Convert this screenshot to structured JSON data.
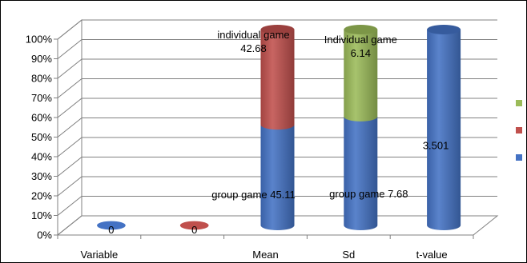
{
  "chart_data": {
    "type": "bar",
    "stacked": "percent",
    "three_d": true,
    "categories": [
      "Variable",
      "",
      "Mean",
      "Sd",
      "t-value"
    ],
    "y_ticks": [
      "0%",
      "10%",
      "20%",
      "30%",
      "40%",
      "50%",
      "60%",
      "70%",
      "80%",
      "90%",
      "100%"
    ],
    "ylim": [
      0,
      100
    ],
    "grid": true,
    "legend_position": "right",
    "series": [
      {
        "color": "#4472C4",
        "values": [
          0,
          null,
          45.11,
          7.68,
          3.501
        ]
      },
      {
        "color": "#C0504D",
        "values": [
          null,
          0,
          42.68,
          null,
          null
        ]
      },
      {
        "color": "#9BBB59",
        "values": [
          null,
          null,
          null,
          6.14,
          null
        ]
      }
    ],
    "data_labels": [
      {
        "series": 0,
        "category": 0,
        "text": "0"
      },
      {
        "series": 1,
        "category": 1,
        "text": "0"
      },
      {
        "series": 0,
        "category": 2,
        "text": "group game 45.11"
      },
      {
        "series": 1,
        "category": 2,
        "text": "individual game 42.68"
      },
      {
        "series": 0,
        "category": 3,
        "text": "group game 7.68"
      },
      {
        "series": 2,
        "category": 3,
        "text": "Individual game 6.14"
      },
      {
        "series": 0,
        "category": 4,
        "text": "3.501"
      }
    ]
  }
}
